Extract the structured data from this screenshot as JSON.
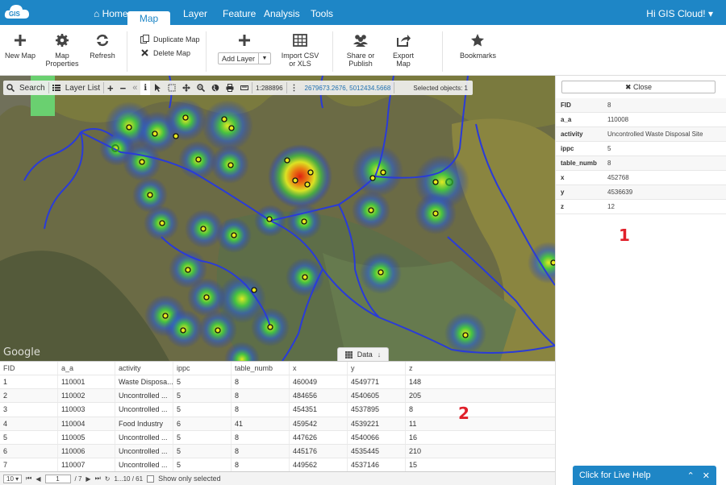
{
  "nav": {
    "logo_text": "GIS",
    "tabs": [
      {
        "label": "Home"
      },
      {
        "label": "Map"
      },
      {
        "label": "Layer"
      },
      {
        "label": "Feature"
      },
      {
        "label": "Analysis"
      },
      {
        "label": "Tools"
      }
    ],
    "user": "Hi GIS Cloud! ▾"
  },
  "ribbon": {
    "new_map": "New Map",
    "map_properties_1": "Map",
    "map_properties_2": "Properties",
    "refresh": "Refresh",
    "duplicate_map": "Duplicate Map",
    "delete_map": "Delete Map",
    "add_layer": "Add Layer",
    "import_1": "Import CSV",
    "import_2": "or XLS",
    "share_1": "Share or",
    "share_2": "Publish",
    "export_map": "Export Map",
    "bookmarks": "Bookmarks"
  },
  "map_toolbar": {
    "search": "Search",
    "layer_list": "Layer List",
    "scale": "1:288896",
    "coords": "2679673.2676, 5012434.5668",
    "selected": "Selected objects: 1"
  },
  "map": {
    "attribution": "Google",
    "data_toggle": "Data"
  },
  "panel": {
    "close": "✖ Close",
    "attributes": [
      {
        "k": "FID",
        "v": "8"
      },
      {
        "k": "a_a",
        "v": "110008"
      },
      {
        "k": "activity",
        "v": "Uncontrolled Waste Disposal Site"
      },
      {
        "k": "ippc",
        "v": "5"
      },
      {
        "k": "table_numb",
        "v": "8"
      },
      {
        "k": "x",
        "v": "452768"
      },
      {
        "k": "y",
        "v": "4536639"
      },
      {
        "k": "z",
        "v": "12"
      }
    ],
    "marker_1": "1"
  },
  "grid": {
    "columns": [
      "FID",
      "a_a",
      "activity",
      "ippc",
      "table_numb",
      "x",
      "y",
      "z"
    ],
    "rows": [
      [
        "1",
        "110001",
        "Waste Disposa...",
        "5",
        "8",
        "460049",
        "4549771",
        "148"
      ],
      [
        "2",
        "110002",
        "Uncontrolled ...",
        "5",
        "8",
        "484656",
        "4540605",
        "205"
      ],
      [
        "3",
        "110003",
        "Uncontrolled ...",
        "5",
        "8",
        "454351",
        "4537895",
        "8"
      ],
      [
        "4",
        "110004",
        "Food Industry",
        "6",
        "41",
        "459542",
        "4539221",
        "11"
      ],
      [
        "5",
        "110005",
        "Uncontrolled ...",
        "5",
        "8",
        "447626",
        "4540066",
        "16"
      ],
      [
        "6",
        "110006",
        "Uncontrolled ...",
        "5",
        "8",
        "445176",
        "4535445",
        "210"
      ],
      [
        "7",
        "110007",
        "Uncontrolled ...",
        "5",
        "8",
        "449562",
        "4537146",
        "15"
      ]
    ],
    "marker_2": "2"
  },
  "pager": {
    "page_size": "10 ▾",
    "page": "1",
    "of": "/ 7",
    "range": "1...10 / 61",
    "only_selected": "Show only selected"
  },
  "livehelp": {
    "label": "Click for Live Help"
  },
  "colors": {
    "brand": "#1e86c6",
    "marker": "#e0202a"
  }
}
